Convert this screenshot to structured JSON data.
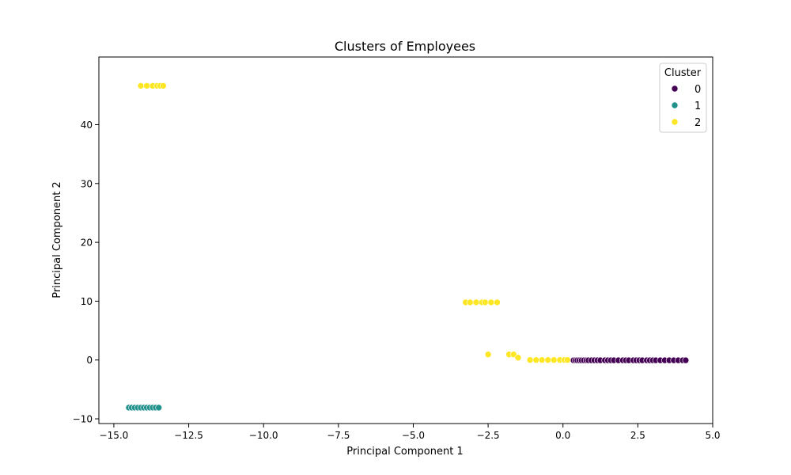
{
  "chart_data": {
    "type": "scatter",
    "title": "Clusters of Employees",
    "xlabel": "Principal Component 1",
    "ylabel": "Principal Component 2",
    "xlim": [
      -15.5,
      5.0
    ],
    "ylim": [
      -10.8,
      51.5
    ],
    "xticks": [
      -15.0,
      -12.5,
      -10.0,
      -7.5,
      -5.0,
      -2.5,
      0.0,
      2.5,
      5.0
    ],
    "xtick_labels": [
      "−15.0",
      "−12.5",
      "−10.0",
      "−7.5",
      "−5.0",
      "−2.5",
      "0.0",
      "2.5",
      "5.0"
    ],
    "yticks": [
      -10,
      0,
      10,
      20,
      30,
      40
    ],
    "ytick_labels": [
      "−10",
      "0",
      "10",
      "20",
      "30",
      "40"
    ],
    "grid": false,
    "legend": {
      "title": "Cluster",
      "placement": "top-right",
      "entries": [
        "0",
        "1",
        "2"
      ]
    },
    "series": [
      {
        "name": "0",
        "color": "#440154",
        "points": [
          [
            0.35,
            -0.05
          ],
          [
            0.42,
            -0.05
          ],
          [
            0.48,
            -0.05
          ],
          [
            0.55,
            -0.05
          ],
          [
            0.62,
            -0.05
          ],
          [
            0.7,
            -0.05
          ],
          [
            0.78,
            -0.05
          ],
          [
            0.85,
            -0.05
          ],
          [
            0.95,
            -0.05
          ],
          [
            1.05,
            -0.05
          ],
          [
            1.15,
            -0.05
          ],
          [
            1.25,
            -0.05
          ],
          [
            1.4,
            -0.05
          ],
          [
            1.5,
            -0.05
          ],
          [
            1.6,
            -0.05
          ],
          [
            1.7,
            -0.05
          ],
          [
            1.85,
            -0.05
          ],
          [
            2.0,
            -0.05
          ],
          [
            2.1,
            -0.05
          ],
          [
            2.2,
            -0.05
          ],
          [
            2.35,
            -0.05
          ],
          [
            2.45,
            -0.05
          ],
          [
            2.55,
            -0.05
          ],
          [
            2.65,
            -0.05
          ],
          [
            2.8,
            -0.05
          ],
          [
            2.9,
            -0.05
          ],
          [
            3.0,
            -0.05
          ],
          [
            3.1,
            -0.05
          ],
          [
            3.25,
            -0.05
          ],
          [
            3.4,
            -0.05
          ],
          [
            3.55,
            -0.05
          ],
          [
            3.7,
            -0.05
          ],
          [
            3.85,
            -0.05
          ],
          [
            4.0,
            -0.05
          ],
          [
            4.1,
            -0.05
          ]
        ]
      },
      {
        "name": "1",
        "color": "#21918c",
        "points": [
          [
            -14.5,
            -8.1
          ],
          [
            -14.4,
            -8.1
          ],
          [
            -14.3,
            -8.1
          ],
          [
            -14.2,
            -8.1
          ],
          [
            -14.1,
            -8.1
          ],
          [
            -14.0,
            -8.1
          ],
          [
            -13.9,
            -8.1
          ],
          [
            -13.8,
            -8.1
          ],
          [
            -13.7,
            -8.1
          ],
          [
            -13.6,
            -8.1
          ],
          [
            -13.5,
            -8.1
          ]
        ]
      },
      {
        "name": "2",
        "color": "#fde725",
        "points": [
          [
            -14.1,
            46.6
          ],
          [
            -13.9,
            46.6
          ],
          [
            -13.7,
            46.6
          ],
          [
            -13.55,
            46.6
          ],
          [
            -13.45,
            46.6
          ],
          [
            -13.35,
            46.6
          ],
          [
            -3.25,
            9.8
          ],
          [
            -3.1,
            9.8
          ],
          [
            -2.9,
            9.8
          ],
          [
            -2.7,
            9.8
          ],
          [
            -2.6,
            9.8
          ],
          [
            -2.4,
            9.8
          ],
          [
            -2.2,
            9.8
          ],
          [
            -2.5,
            0.95
          ],
          [
            -1.8,
            0.95
          ],
          [
            -1.65,
            0.95
          ],
          [
            -1.5,
            0.4
          ],
          [
            -1.1,
            0.0
          ],
          [
            -0.9,
            0.0
          ],
          [
            -0.7,
            0.0
          ],
          [
            -0.5,
            0.0
          ],
          [
            -0.3,
            0.0
          ],
          [
            -0.1,
            0.0
          ],
          [
            0.05,
            0.0
          ],
          [
            0.15,
            0.0
          ]
        ]
      }
    ]
  }
}
